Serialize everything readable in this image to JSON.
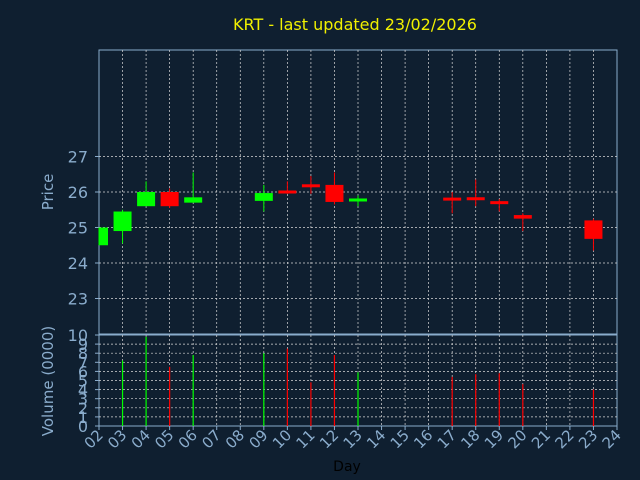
{
  "colors": {
    "background": "#0f1f30",
    "title": "#f0f000",
    "axis_text": "#8aaccc",
    "frame": "#8aaccc",
    "grid": "#d8d8d8",
    "up": "#00ff00",
    "down": "#ff0000",
    "xlabel": "#000000"
  },
  "chart_data": [
    {
      "type": "candlestick",
      "title": "KRT - last updated 23/02/2026",
      "ylabel": "Price",
      "ylim": [
        22,
        30
      ],
      "yticks": [
        "23",
        "24",
        "25",
        "26",
        "27"
      ],
      "grid": true,
      "categories": [
        "02",
        "03",
        "04",
        "05",
        "06",
        "07",
        "08",
        "09",
        "10",
        "11",
        "12",
        "13",
        "14",
        "15",
        "16",
        "17",
        "18",
        "19",
        "20",
        "21",
        "22",
        "23",
        "24"
      ],
      "candles": [
        {
          "day": "02",
          "open": 24.5,
          "high": 25.0,
          "low": 24.5,
          "close": 25.0
        },
        {
          "day": "03",
          "open": 24.9,
          "high": 25.5,
          "low": 24.55,
          "close": 25.45
        },
        {
          "day": "04",
          "open": 25.6,
          "high": 26.3,
          "low": 25.6,
          "close": 26.0
        },
        {
          "day": "05",
          "open": 26.0,
          "high": 26.1,
          "low": 25.55,
          "close": 25.6
        },
        {
          "day": "06",
          "open": 25.7,
          "high": 26.55,
          "low": 25.7,
          "close": 25.85
        },
        {
          "day": "09",
          "open": 25.75,
          "high": 26.2,
          "low": 25.45,
          "close": 25.97
        },
        {
          "day": "10",
          "open": 26.02,
          "high": 26.3,
          "low": 25.95,
          "close": 25.98
        },
        {
          "day": "11",
          "open": 26.2,
          "high": 26.45,
          "low": 25.95,
          "close": 26.15
        },
        {
          "day": "12",
          "open": 26.2,
          "high": 26.55,
          "low": 25.65,
          "close": 25.72
        },
        {
          "day": "13",
          "open": 25.75,
          "high": 25.9,
          "low": 25.6,
          "close": 25.8
        },
        {
          "day": "17",
          "open": 25.82,
          "high": 26.0,
          "low": 25.4,
          "close": 25.78
        },
        {
          "day": "18",
          "open": 25.83,
          "high": 26.35,
          "low": 25.6,
          "close": 25.79
        },
        {
          "day": "19",
          "open": 25.72,
          "high": 25.8,
          "low": 25.45,
          "close": 25.68
        },
        {
          "day": "20",
          "open": 25.35,
          "high": 25.4,
          "low": 24.9,
          "close": 25.25
        },
        {
          "day": "23",
          "open": 25.2,
          "high": 25.25,
          "low": 24.35,
          "close": 24.68
        }
      ]
    },
    {
      "type": "bar",
      "xlabel": "Day",
      "ylabel": "Volume (0000)",
      "ylim": [
        0,
        10
      ],
      "yticks": [
        "0",
        "1",
        "2",
        "3",
        "4",
        "5",
        "6",
        "7",
        "8",
        "9",
        "10"
      ],
      "grid": true,
      "categories": [
        "02",
        "03",
        "04",
        "05",
        "06",
        "07",
        "08",
        "09",
        "10",
        "11",
        "12",
        "13",
        "14",
        "15",
        "16",
        "17",
        "18",
        "19",
        "20",
        "21",
        "22",
        "23",
        "24"
      ],
      "volumes": [
        {
          "day": "03",
          "value": 7.2,
          "direction": "up"
        },
        {
          "day": "04",
          "value": 9.8,
          "direction": "up"
        },
        {
          "day": "05",
          "value": 6.5,
          "direction": "down"
        },
        {
          "day": "06",
          "value": 7.8,
          "direction": "up"
        },
        {
          "day": "09",
          "value": 8.0,
          "direction": "up"
        },
        {
          "day": "10",
          "value": 8.5,
          "direction": "down"
        },
        {
          "day": "11",
          "value": 4.8,
          "direction": "down"
        },
        {
          "day": "12",
          "value": 7.8,
          "direction": "down"
        },
        {
          "day": "13",
          "value": 5.9,
          "direction": "up"
        },
        {
          "day": "17",
          "value": 5.4,
          "direction": "down"
        },
        {
          "day": "18",
          "value": 5.7,
          "direction": "down"
        },
        {
          "day": "19",
          "value": 5.8,
          "direction": "down"
        },
        {
          "day": "20",
          "value": 4.6,
          "direction": "down"
        },
        {
          "day": "23",
          "value": 4.0,
          "direction": "down"
        }
      ]
    }
  ]
}
